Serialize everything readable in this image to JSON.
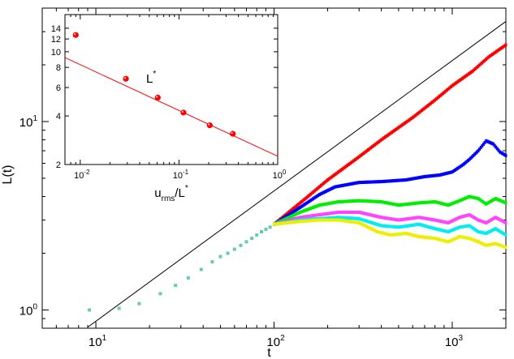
{
  "chart_data": [
    {
      "type": "scatter",
      "role": "main",
      "xlabel": "t",
      "ylabel": "L(t)",
      "xscale": "log",
      "yscale": "log",
      "xlim": [
        5,
        2000
      ],
      "ylim": [
        0.8,
        40
      ],
      "x_ticks": [
        {
          "base": "10",
          "exp": "1",
          "value": 10
        },
        {
          "base": "10",
          "exp": "2",
          "value": 100
        },
        {
          "base": "10",
          "exp": "3",
          "value": 1000
        }
      ],
      "y_ticks": [
        {
          "base": "10",
          "exp": "0",
          "value": 1
        },
        {
          "base": "10",
          "exp": "1",
          "value": 10
        }
      ],
      "grid": false,
      "legend": "none",
      "reference_line": {
        "x": [
          9,
          2000
        ],
        "y": [
          0.81,
          34
        ]
      },
      "early_points": {
        "color": "#66ccaa",
        "points": [
          [
            9.2,
            1.0
          ],
          [
            13.5,
            1.02
          ],
          [
            17.5,
            1.08
          ],
          [
            23,
            1.22
          ],
          [
            28,
            1.35
          ],
          [
            33,
            1.48
          ],
          [
            39,
            1.64
          ],
          [
            45,
            1.8
          ],
          [
            50,
            1.92
          ],
          [
            55,
            2.0
          ],
          [
            60,
            2.1
          ],
          [
            65,
            2.2
          ],
          [
            70,
            2.3
          ],
          [
            75,
            2.4
          ],
          [
            80,
            2.5
          ],
          [
            85,
            2.6
          ],
          [
            90,
            2.68
          ],
          [
            95,
            2.75
          ]
        ]
      },
      "series": [
        {
          "color": "#ff0000",
          "points": [
            [
              100,
              2.85
            ],
            [
              150,
              3.9
            ],
            [
              200,
              4.9
            ],
            [
              300,
              6.5
            ],
            [
              400,
              8
            ],
            [
              600,
              10.5
            ],
            [
              800,
              13
            ],
            [
              1000,
              15.5
            ],
            [
              1300,
              18.5
            ],
            [
              1600,
              22
            ],
            [
              2000,
              25.5
            ]
          ]
        },
        {
          "color": "#0000ff",
          "points": [
            [
              100,
              2.85
            ],
            [
              140,
              3.5
            ],
            [
              180,
              4.1
            ],
            [
              220,
              4.5
            ],
            [
              300,
              4.75
            ],
            [
              400,
              4.8
            ],
            [
              550,
              4.9
            ],
            [
              700,
              5.1
            ],
            [
              850,
              5.2
            ],
            [
              1000,
              5.4
            ],
            [
              1150,
              5.9
            ],
            [
              1250,
              6.3
            ],
            [
              1400,
              7
            ],
            [
              1550,
              7.9
            ],
            [
              1700,
              7.6
            ],
            [
              1850,
              6.9
            ],
            [
              2000,
              6.6
            ]
          ]
        },
        {
          "color": "#00ee00",
          "points": [
            [
              100,
              2.85
            ],
            [
              140,
              3.3
            ],
            [
              180,
              3.6
            ],
            [
              230,
              3.75
            ],
            [
              300,
              3.8
            ],
            [
              400,
              3.75
            ],
            [
              500,
              3.6
            ],
            [
              650,
              3.7
            ],
            [
              800,
              3.75
            ],
            [
              950,
              3.6
            ],
            [
              1100,
              3.8
            ],
            [
              1250,
              4.0
            ],
            [
              1400,
              3.9
            ],
            [
              1550,
              3.65
            ],
            [
              1750,
              3.9
            ],
            [
              2000,
              3.7
            ]
          ]
        },
        {
          "color": "#ff44ff",
          "points": [
            [
              100,
              2.85
            ],
            [
              140,
              3.1
            ],
            [
              180,
              3.2
            ],
            [
              230,
              3.3
            ],
            [
              300,
              3.3
            ],
            [
              400,
              3.1
            ],
            [
              500,
              3.0
            ],
            [
              650,
              3.1
            ],
            [
              800,
              3.0
            ],
            [
              950,
              2.9
            ],
            [
              1100,
              3.1
            ],
            [
              1250,
              3.2
            ],
            [
              1400,
              3.0
            ],
            [
              1550,
              2.9
            ],
            [
              1750,
              3.1
            ],
            [
              2000,
              2.9
            ]
          ]
        },
        {
          "color": "#00eeee",
          "points": [
            [
              100,
              2.85
            ],
            [
              140,
              3.0
            ],
            [
              180,
              3.05
            ],
            [
              230,
              3.1
            ],
            [
              300,
              3.05
            ],
            [
              400,
              2.8
            ],
            [
              500,
              2.75
            ],
            [
              650,
              2.85
            ],
            [
              800,
              2.7
            ],
            [
              950,
              2.6
            ],
            [
              1100,
              2.75
            ],
            [
              1250,
              2.8
            ],
            [
              1400,
              2.6
            ],
            [
              1550,
              2.55
            ],
            [
              1750,
              2.7
            ],
            [
              2000,
              2.5
            ]
          ]
        },
        {
          "color": "#eeee00",
          "points": [
            [
              100,
              2.85
            ],
            [
              140,
              2.95
            ],
            [
              180,
              3.0
            ],
            [
              230,
              3.0
            ],
            [
              300,
              2.9
            ],
            [
              380,
              2.6
            ],
            [
              450,
              2.5
            ],
            [
              550,
              2.55
            ],
            [
              650,
              2.45
            ],
            [
              800,
              2.4
            ],
            [
              950,
              2.3
            ],
            [
              1100,
              2.45
            ],
            [
              1250,
              2.4
            ],
            [
              1400,
              2.3
            ],
            [
              1550,
              2.2
            ],
            [
              1750,
              2.25
            ],
            [
              2000,
              2.15
            ]
          ]
        }
      ]
    },
    {
      "type": "scatter",
      "role": "inset",
      "xlabel": "u",
      "xlabel_sub": "rms",
      "xlabel_mid": "/L",
      "xlabel_sup": "*",
      "annotation": "L",
      "annotation_sup": "*",
      "xscale": "log",
      "yscale": "log",
      "xlim": [
        0.007,
        1
      ],
      "ylim": [
        2,
        17
      ],
      "x_ticks": [
        {
          "base": "10",
          "exp": "-2",
          "value": 0.01
        },
        {
          "base": "10",
          "exp": "-1",
          "value": 0.1
        },
        {
          "base": "10",
          "exp": "0",
          "value": 1
        }
      ],
      "y_ticks": [
        {
          "label": "2",
          "value": 2
        },
        {
          "label": "4",
          "value": 4
        },
        {
          "label": "6",
          "value": 6
        },
        {
          "label": "8",
          "value": 8
        },
        {
          "label": "10",
          "value": 10
        },
        {
          "label": "12",
          "value": 12
        },
        {
          "label": "14",
          "value": 14
        }
      ],
      "points": {
        "color": "#ff0000",
        "x": [
          0.009,
          0.029,
          0.061,
          0.111,
          0.205,
          0.351
        ],
        "y": [
          12.7,
          6.8,
          5.2,
          4.2,
          3.5,
          3.1
        ]
      },
      "fit_line": {
        "color": "#ff0000",
        "x": [
          0.007,
          1
        ],
        "y": [
          9.2,
          2.25
        ]
      }
    }
  ]
}
